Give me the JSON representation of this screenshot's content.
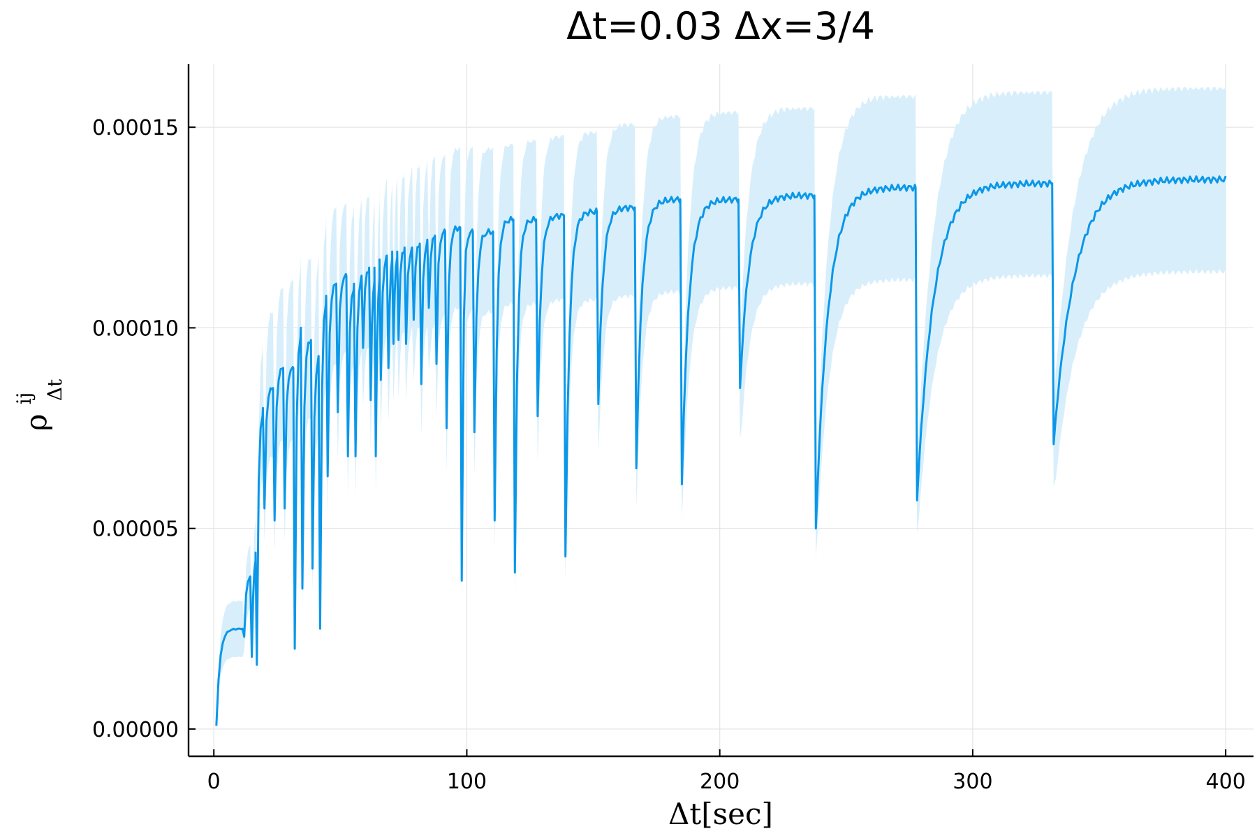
{
  "chart_data": {
    "type": "line",
    "title": "Δt=0.03 Δx=3/4",
    "xlabel": "Δt[sec]",
    "ylabel_base": "ρ",
    "ylabel_sup": "ij",
    "ylabel_sub": "Δt",
    "xlim": [
      -10,
      411
    ],
    "ylim": [
      -6.8e-06,
      0.0001657
    ],
    "xticks": [
      0,
      100,
      200,
      300,
      400
    ],
    "xtick_labels": [
      "0",
      "100",
      "200",
      "300",
      "400"
    ],
    "yticks": [
      0,
      5e-05,
      0.0001,
      0.00015
    ],
    "ytick_labels": [
      "0.00000",
      "0.00005",
      "0.00010",
      "0.00015"
    ],
    "grid": true,
    "line_color": "#0B97E8",
    "band_color": "#D8EFFB",
    "dip_x": [
      12,
      15,
      17,
      20,
      24,
      28,
      32,
      35,
      39,
      42,
      45,
      49,
      53,
      56,
      59,
      62,
      64,
      66,
      69,
      71,
      73,
      76,
      79,
      82,
      85,
      88,
      92,
      98,
      103,
      111,
      119,
      128,
      139,
      152,
      167,
      185,
      208,
      238,
      278,
      332
    ],
    "dip_y": [
      2.3e-05,
      1.8e-05,
      1.6e-05,
      5.5e-05,
      5.2e-05,
      5.5e-05,
      2e-05,
      3.5e-05,
      4e-05,
      2.5e-05,
      6.3e-05,
      7.9e-05,
      6.8e-05,
      6.8e-05,
      9.5e-05,
      8.2e-05,
      6.8e-05,
      8.7e-05,
      9e-05,
      9.6e-05,
      9.7e-05,
      9.6e-05,
      0.000102,
      8.6e-05,
      0.000105,
      9.1e-05,
      7.5e-05,
      3.7e-05,
      7.4e-05,
      5.2e-05,
      3.9e-05,
      7.8e-05,
      4.3e-05,
      8.1e-05,
      6.5e-05,
      6.1e-05,
      8.5e-05,
      5e-05,
      5.7e-05,
      7.1e-05
    ],
    "plateau_y": [
      2.5e-05,
      3.8e-05,
      4.4e-05,
      8e-05,
      8.5e-05,
      9e-05,
      9e-05,
      0.0001,
      9.7e-05,
      9.3e-05,
      0.000108,
      0.000111,
      0.000113,
      0.000111,
      0.000113,
      0.000115,
      0.000115,
      0.000117,
      0.000118,
      0.000119,
      0.000119,
      0.00012,
      0.00012,
      0.000121,
      0.000122,
      0.000123,
      0.000124,
      0.000125,
      0.000124,
      0.000124,
      0.000127,
      0.000127,
      0.000128,
      0.000129,
      0.00013,
      0.000132,
      0.000132,
      0.000133,
      0.000135,
      0.000136,
      0.000137
    ],
    "band_upper_y": [
      3.2e-05,
      4.6e-05,
      5.5e-05,
      9.7e-05,
      0.000104,
      0.00011,
      0.000112,
      0.000118,
      0.000118,
      0.000118,
      0.000128,
      0.00013,
      0.000131,
      0.000131,
      0.000132,
      0.000134,
      0.000135,
      0.000137,
      0.000137,
      0.000138,
      0.000139,
      0.000139,
      0.00014,
      0.000141,
      0.000142,
      0.000143,
      0.000143,
      0.000145,
      0.000145,
      0.000145,
      0.000146,
      0.000147,
      0.000148,
      0.000149,
      0.000151,
      0.000153,
      0.000154,
      0.000155,
      0.000158,
      0.000159,
      0.00016
    ],
    "band_lower_y": [
      1.8e-05,
      3e-05,
      3.5e-05,
      6.4e-05,
      6.8e-05,
      7.2e-05,
      7.2e-05,
      8.4e-05,
      7.8e-05,
      7.4e-05,
      8.7e-05,
      9.1e-05,
      9.4e-05,
      9.2e-05,
      9.4e-05,
      9.6e-05,
      9.6e-05,
      9.7e-05,
      9.8e-05,
      9.9e-05,
      0.0001,
      0.0001,
      0.0001,
      0.000101,
      0.000101,
      0.000101,
      0.000103,
      0.000105,
      0.000104,
      0.000104,
      0.000106,
      0.000106,
      0.000107,
      0.000107,
      0.000108,
      0.000109,
      0.00011,
      0.000111,
      0.000112,
      0.000113,
      0.000114
    ],
    "start_point": [
      1,
      8e-07
    ],
    "end_x": 400
  }
}
